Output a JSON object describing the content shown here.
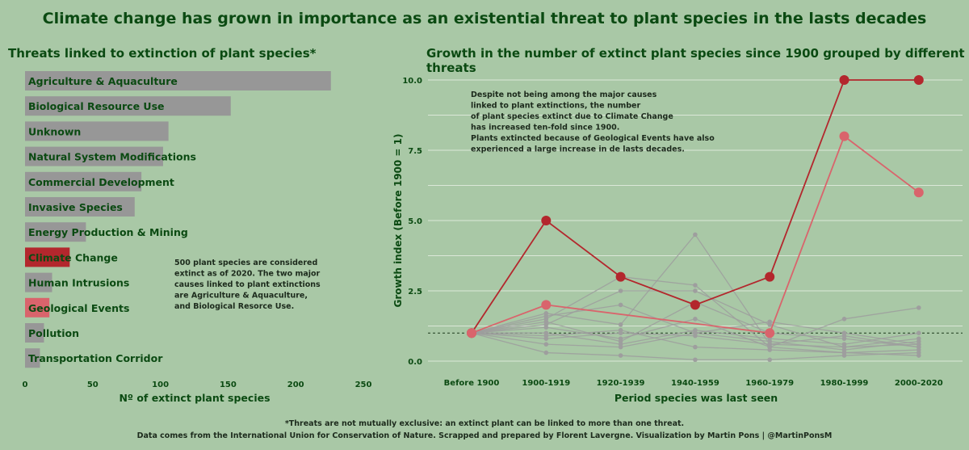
{
  "title": "Climate change has grown in importance as an existential threat to plant species in the lasts decades",
  "chart_data": [
    {
      "type": "bar",
      "orientation": "horizontal",
      "title": "Threats linked to extinction of plant species*",
      "xlabel": "Nº of extinct plant species",
      "xlim": [
        0,
        250
      ],
      "xticks": [
        "0",
        "50",
        "100",
        "150",
        "200",
        "250"
      ],
      "categories": [
        "Agriculture & Aquaculture",
        "Biological Resource Use",
        "Unknown",
        "Natural System Modifications",
        "Commercial Development",
        "Invasive Species",
        "Energy Production & Mining",
        "Climate Change",
        "Human Intrusions",
        "Geological Events",
        "Pollution",
        "Transportation Corridor"
      ],
      "values": [
        226,
        152,
        106,
        102,
        86,
        81,
        45,
        33,
        20,
        18,
        14,
        11
      ],
      "highlight": {
        "Climate Change": "#b3272d",
        "Geological Events": "#d9646c"
      },
      "bar_color": "#979797",
      "annotation": [
        "500 plant species are considered",
        "extinct as of 2020. The two major",
        "causes linked to plant extinctions",
        "are Agriculture & Aquaculture,",
        "and Biological Resorce Use."
      ]
    },
    {
      "type": "line",
      "title": "Growth in the number of extinct plant species since 1900 grouped by different threats",
      "xlabel": "Period species was last seen",
      "ylabel": "Growth index (Before 1900 = 1)",
      "categories": [
        "Before 1900",
        "1900-1919",
        "1920-1939",
        "1940-1959",
        "1960-1979",
        "1980-1999",
        "2000-2020"
      ],
      "ylim": [
        0,
        10.5
      ],
      "yticks": [
        "0.0",
        "2.5",
        "5.0",
        "7.5",
        "10.0"
      ],
      "reference_line": 1,
      "series": [
        {
          "name": "Climate Change",
          "color": "#b3272d",
          "values": [
            1,
            5,
            3,
            2,
            3,
            10,
            10
          ]
        },
        {
          "name": "Geological Events",
          "color": "#d9646c",
          "values": [
            1,
            2,
            null,
            null,
            1,
            8,
            6
          ]
        }
      ],
      "other_series_color": "#9e9e9e",
      "other_series": [
        [
          1,
          1.5,
          3.0,
          2.7,
          0.5,
          0.3,
          0.4
        ],
        [
          1,
          1.3,
          2.5,
          2.5,
          1.3,
          0.5,
          0.6
        ],
        [
          1,
          1.7,
          1.3,
          4.5,
          0.6,
          0.9,
          0.5
        ],
        [
          1,
          1.2,
          0.8,
          1.5,
          0.5,
          1.5,
          1.9
        ],
        [
          1,
          1.0,
          0.6,
          1.1,
          0.8,
          0.6,
          1.0
        ],
        [
          1,
          0.8,
          1.0,
          0.9,
          0.6,
          0.5,
          0.8
        ],
        [
          1,
          0.6,
          0.5,
          1.0,
          0.7,
          0.4,
          0.7
        ],
        [
          1,
          0.3,
          0.2,
          0.05,
          0.05,
          0.2,
          0.3
        ],
        [
          1,
          1.4,
          0.7,
          2.1,
          1.0,
          0.8,
          0.5
        ],
        [
          1,
          1.6,
          2.0,
          1.0,
          1.4,
          1.0,
          0.6
        ],
        [
          1,
          0.9,
          1.1,
          0.5,
          0.4,
          0.3,
          0.2
        ]
      ],
      "annotation": [
        "Despite not being among the major causes",
        "linked to plant extinctions, the number",
        "of plant species extinct due to Climate Change",
        "has increased ten-fold since 1900.",
        "Plants extincted because of Geological Events have also",
        "experienced a large increase in de lasts decades."
      ]
    }
  ],
  "footer": [
    "*Threats are not mutually exclusive: an extinct plant can be linked to more than one threat.",
    "Data comes from the International Union for Conservation of Nature. Scrapped and prepared by  Florent Lavergne. Visualization by Martin Pons | @MartinPonsM"
  ]
}
